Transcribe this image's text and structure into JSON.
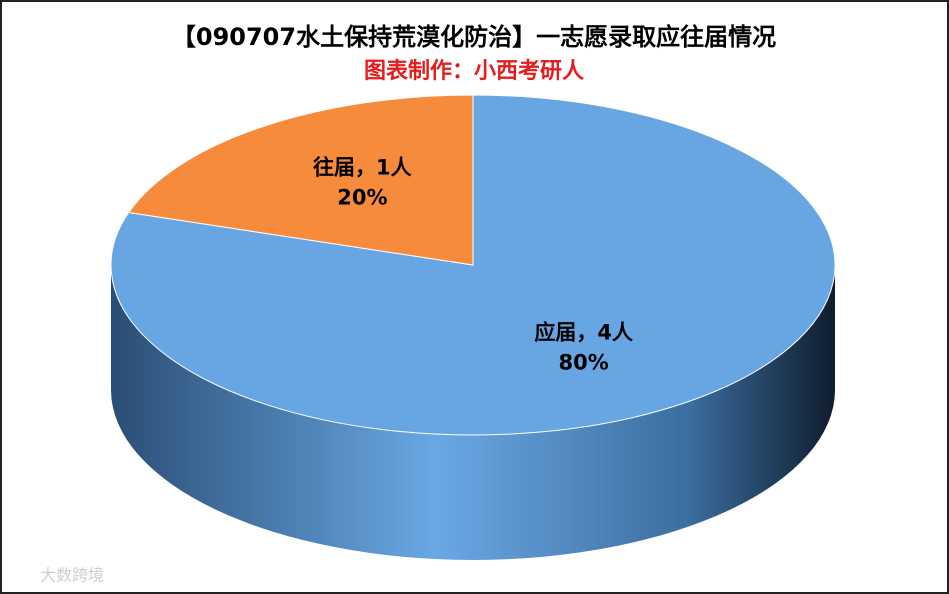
{
  "chart_data": {
    "type": "pie3d",
    "title": "【090707水土保持荒漠化防治】一志愿录取应往届情况",
    "subtitle": "图表制作：小西考研人",
    "values": [
      4,
      1
    ],
    "value_labels": [
      "应届，4人",
      "往届，1人"
    ],
    "percent_labels": [
      "80%",
      "20%"
    ],
    "colors": [
      "#67a6e2",
      "#f68b3c"
    ],
    "watermark": "大数跨境"
  }
}
